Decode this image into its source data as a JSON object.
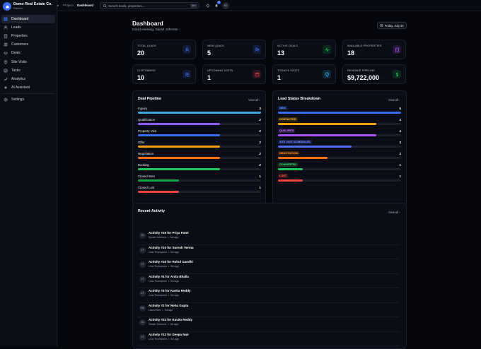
{
  "brand": {
    "name": "Demo Real Estate Co.",
    "subtitle": "Platform"
  },
  "nav": {
    "items": [
      {
        "label": "Dashboard",
        "icon": "grid-icon",
        "active": true
      },
      {
        "label": "Leads",
        "icon": "users-icon"
      },
      {
        "label": "Properties",
        "icon": "building-icon"
      },
      {
        "label": "Customers",
        "icon": "user-group-icon"
      },
      {
        "label": "Deals",
        "icon": "handshake-icon"
      },
      {
        "label": "Site Visits",
        "icon": "map-pin-icon"
      },
      {
        "label": "Tasks",
        "icon": "checkbox-icon"
      },
      {
        "label": "Analytics",
        "icon": "chart-icon"
      },
      {
        "label": "AI Assistant",
        "icon": "sparkle-icon"
      }
    ],
    "settings": {
      "label": "Settings",
      "icon": "gear-icon"
    }
  },
  "topbar": {
    "crumb_root": "Project",
    "crumb_current": "Dashboard",
    "search_placeholder": "Search leads, properties...",
    "search_shortcut": "⌘K",
    "notification_count": "3",
    "avatar_initials": "SJ"
  },
  "header": {
    "title": "Dashboard",
    "greeting": "Good evening, Sarah Johnson",
    "date": "Friday, July 24"
  },
  "stats": [
    {
      "label": "Total Leads",
      "value": "20",
      "icon": "users-icon",
      "color": "#3b6df0"
    },
    {
      "label": "New Leads",
      "value": "5",
      "icon": "user-plus-icon",
      "color": "#3b6df0"
    },
    {
      "label": "Active Deals",
      "value": "13",
      "icon": "activity-icon",
      "color": "#22c55e"
    },
    {
      "label": "Available Properties",
      "value": "18",
      "icon": "building-icon",
      "color": "#a855f7"
    },
    {
      "label": "Customers",
      "value": "10",
      "icon": "user-group-icon",
      "color": "#3b6df0"
    },
    {
      "label": "Upcoming Visits",
      "value": "1",
      "icon": "calendar-icon",
      "color": "#ef4444"
    },
    {
      "label": "Today's Visits",
      "value": "1",
      "icon": "map-pin-icon",
      "color": "#38bdf8"
    },
    {
      "label": "Revenue Pipeline",
      "value": "$9,722,000",
      "icon": "dollar-icon",
      "color": "#22c55e"
    }
  ],
  "pipeline": {
    "title": "Deal Pipeline",
    "view_all": "View all ›",
    "max": 3,
    "rows": [
      {
        "label": "Inquiry",
        "value": 3,
        "color": "#3ea7e0"
      },
      {
        "label": "Qualification",
        "value": 2,
        "color": "#8b5cf6"
      },
      {
        "label": "Property Visit",
        "value": 2,
        "color": "#3b6df0"
      },
      {
        "label": "Offer",
        "value": 2,
        "color": "#f59e0b"
      },
      {
        "label": "Negotiation",
        "value": 2,
        "color": "#f97316"
      },
      {
        "label": "Booking",
        "value": 2,
        "color": "#22c55e"
      },
      {
        "label": "Closed Won",
        "value": 1,
        "color": "#16a34a"
      },
      {
        "label": "Closed Lost",
        "value": 1,
        "color": "#ef4444"
      }
    ]
  },
  "status": {
    "title": "Lead Status Breakdown",
    "view_all": "View all ›",
    "max": 5,
    "rows": [
      {
        "label": "New",
        "value": 5,
        "color": "#3b6df0",
        "tag_bg": "#13234a",
        "tag_fg": "#6f98ff"
      },
      {
        "label": "Contacted",
        "value": 4,
        "color": "#f59e0b",
        "tag_bg": "#3a2a0a",
        "tag_fg": "#f5b642"
      },
      {
        "label": "Qualified",
        "value": 4,
        "color": "#a855f7",
        "tag_bg": "#2c1646",
        "tag_fg": "#c084fc"
      },
      {
        "label": "Site Visit Scheduled",
        "value": 3,
        "color": "#4f6ef0",
        "tag_bg": "#17204a",
        "tag_fg": "#7d95ff"
      },
      {
        "label": "Negotiation",
        "value": 2,
        "color": "#f97316",
        "tag_bg": "#3d1e0a",
        "tag_fg": "#fb923c"
      },
      {
        "label": "Converted",
        "value": 1,
        "color": "#22c55e",
        "tag_bg": "#0d3320",
        "tag_fg": "#4ade80"
      },
      {
        "label": "Lost",
        "value": 1,
        "color": "#ef4444",
        "tag_bg": "#3f1014",
        "tag_fg": "#f87171"
      }
    ]
  },
  "activity": {
    "title": "Recent Activity",
    "view_all": "View all ›",
    "items": [
      {
        "title": "Activity #19 for Priya Patel",
        "user": "Sarah Johnson",
        "initials": "SJ",
        "time": "5d ago"
      },
      {
        "title": "Activity #10 for Suresh Verma",
        "user": "Lisa Thompson",
        "initials": "LT",
        "time": "5d ago"
      },
      {
        "title": "Activity #16 for Rahul Gandhi",
        "user": "Lisa Thompson",
        "initials": "LT",
        "time": "5d ago"
      },
      {
        "title": "Activity #4 for Anita Bhalla",
        "user": "Lisa Thompson",
        "initials": "LT",
        "time": "5d ago"
      },
      {
        "title": "Activity #3 for Kavita Reddy",
        "user": "Lisa Thompson",
        "initials": "LT",
        "time": "5d ago"
      },
      {
        "title": "Activity #2 for Neha Gupta",
        "user": "David Kim",
        "initials": "DK",
        "time": "5d ago"
      },
      {
        "title": "Activity #23 for Kavita Reddy",
        "user": "Sarah Johnson",
        "initials": "SJ",
        "time": "5d ago"
      },
      {
        "title": "Activity #12 for Deepa Nair",
        "user": "Lisa Thompson",
        "initials": "LT",
        "time": "5d ago"
      }
    ]
  }
}
